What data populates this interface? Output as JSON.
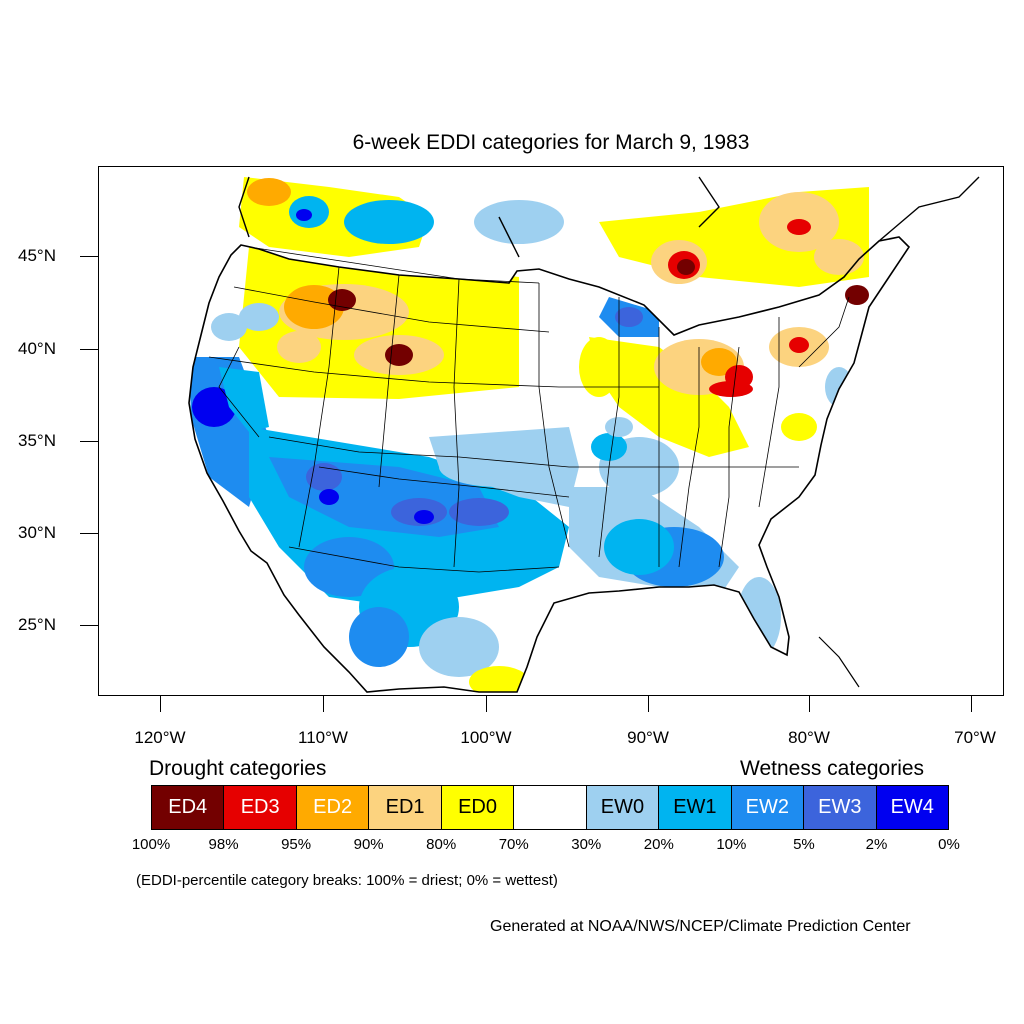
{
  "title": "6-week EDDI categories for March 9, 1983",
  "axes": {
    "lat_labels": [
      "45°N",
      "40°N",
      "35°N",
      "30°N",
      "25°N"
    ],
    "lon_labels": [
      "120°W",
      "110°W",
      "100°W",
      "90°W",
      "80°W",
      "70°W"
    ]
  },
  "legend": {
    "drought_heading": "Drought categories",
    "wetness_heading": "Wetness categories",
    "categories": [
      {
        "label": "ED4",
        "color": "#730000",
        "text_color": "#ffffff"
      },
      {
        "label": "ED3",
        "color": "#e60000",
        "text_color": "#ffffff"
      },
      {
        "label": "ED2",
        "color": "#ffaa00",
        "text_color": "#ffffff"
      },
      {
        "label": "ED1",
        "color": "#fcd37f",
        "text_color": "#000000"
      },
      {
        "label": "ED0",
        "color": "#ffff00",
        "text_color": "#000000"
      },
      {
        "label": "",
        "color": "#ffffff",
        "text_color": "#000000"
      },
      {
        "label": "EW0",
        "color": "#9ed0f0",
        "text_color": "#000000"
      },
      {
        "label": "EW1",
        "color": "#00b4f0",
        "text_color": "#000000"
      },
      {
        "label": "EW2",
        "color": "#1e8cf0",
        "text_color": "#ffffff"
      },
      {
        "label": "EW3",
        "color": "#3c64dc",
        "text_color": "#ffffff"
      },
      {
        "label": "EW4",
        "color": "#0000f0",
        "text_color": "#ffffff"
      }
    ],
    "breaks": [
      "100%",
      "98%",
      "95%",
      "90%",
      "80%",
      "70%",
      "30%",
      "20%",
      "10%",
      "5%",
      "2%",
      "0%"
    ]
  },
  "note": "(EDDI-percentile category breaks: 100% = driest; 0% = wettest)",
  "credit": "Generated at NOAA/NWS/NCEP/Climate Prediction Center"
}
